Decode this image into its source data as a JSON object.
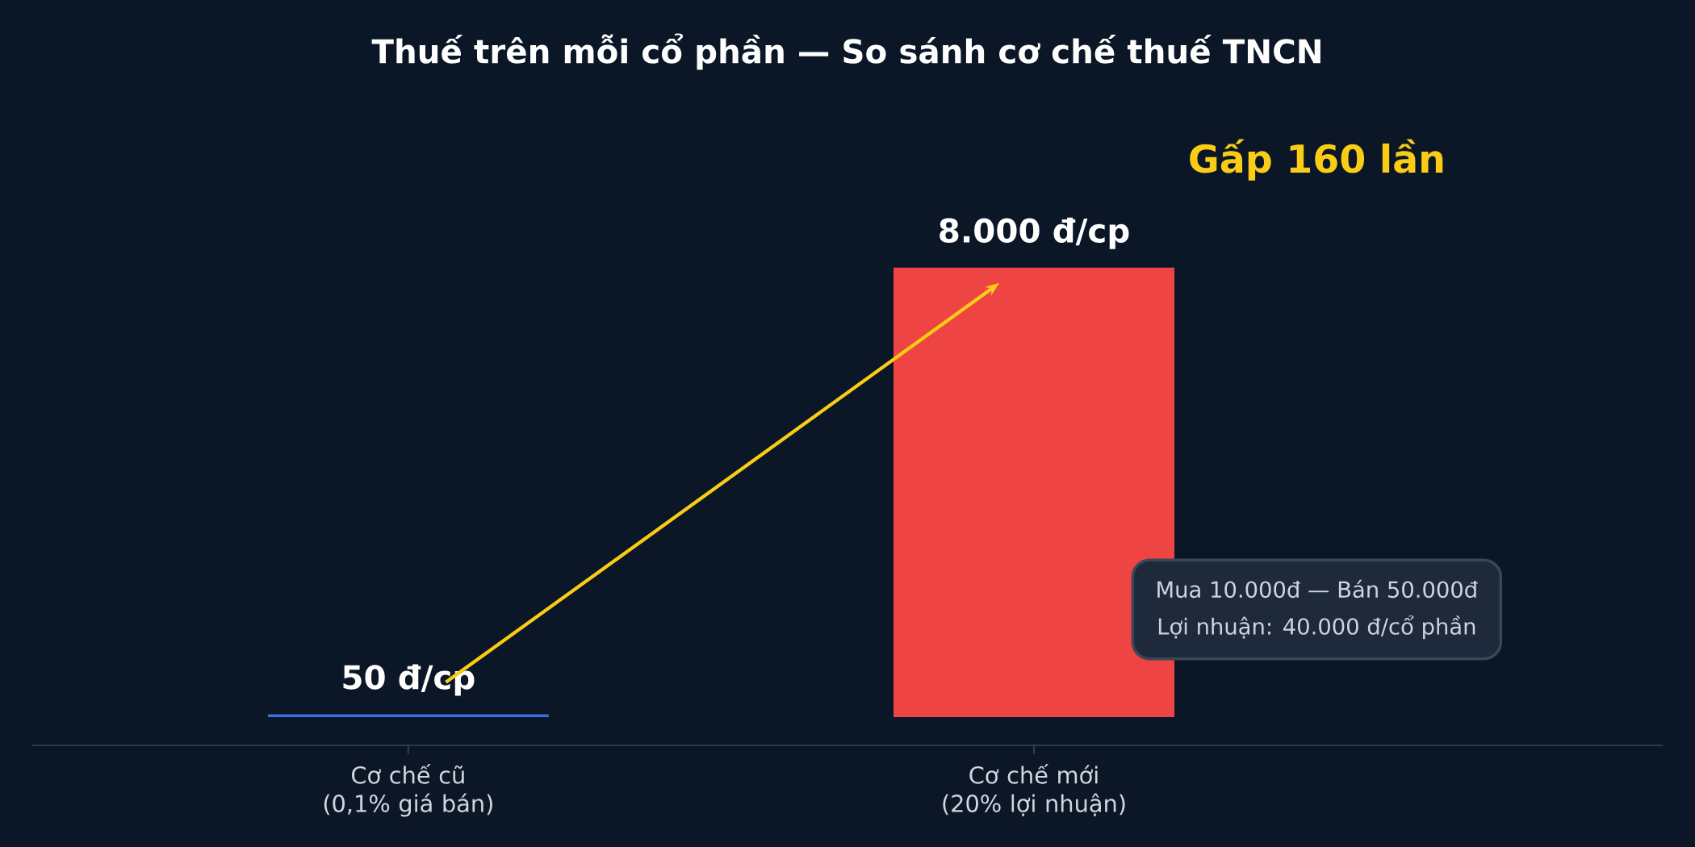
{
  "chart_data": {
    "type": "bar",
    "title": "Thuế trên mỗi cổ phần — So sánh cơ chế thuế TNCN",
    "categories": [
      "Cơ chế cũ (0,1% giá bán)",
      "Cơ chế mới (20% lợi nhuận)"
    ],
    "values": [
      50,
      8000
    ],
    "colors": [
      "#3b6fe0",
      "#ef4444"
    ],
    "value_labels": [
      "50 đ/cp",
      "8.000 đ/cp"
    ],
    "annotations": [
      "Gấp 160 lần",
      "Mua 10.000đ  —  Bán 50.000đ",
      "Lợi nhuận: 40.000 đ/cổ phần"
    ]
  }
}
